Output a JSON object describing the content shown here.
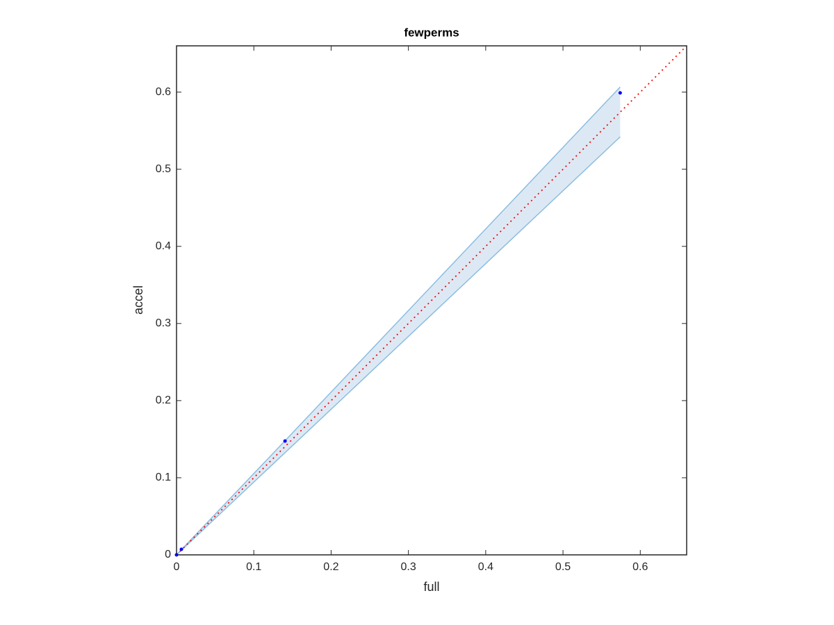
{
  "chart_data": {
    "type": "scatter",
    "title": "fewperms",
    "x_label": "full",
    "y_label": "accel",
    "x": [
      0,
      0.0063,
      0.1404,
      0.574
    ],
    "values": [
      0,
      0.0072,
      0.1476,
      0.599
    ],
    "color": "#0000ff",
    "band": {
      "x": [
        0,
        0.0063,
        0.1404,
        0.574
      ],
      "lower": [
        0,
        0.006,
        0.1325,
        0.542
      ],
      "upper": [
        0,
        0.0067,
        0.148,
        0.6066
      ],
      "color": "#8bbde0",
      "fill": "#dce9f4"
    },
    "reference_line": {
      "x": [
        0,
        0.66
      ],
      "values": [
        0,
        0.66
      ],
      "color": "#ff0000"
    },
    "xlim": [
      0,
      0.66
    ],
    "ylim": [
      0,
      0.66
    ],
    "xticks": [
      0,
      0.1,
      0.2,
      0.3,
      0.4,
      0.5,
      0.6
    ],
    "yticks": [
      0,
      0.1,
      0.2,
      0.3,
      0.4,
      0.5,
      0.6
    ]
  }
}
